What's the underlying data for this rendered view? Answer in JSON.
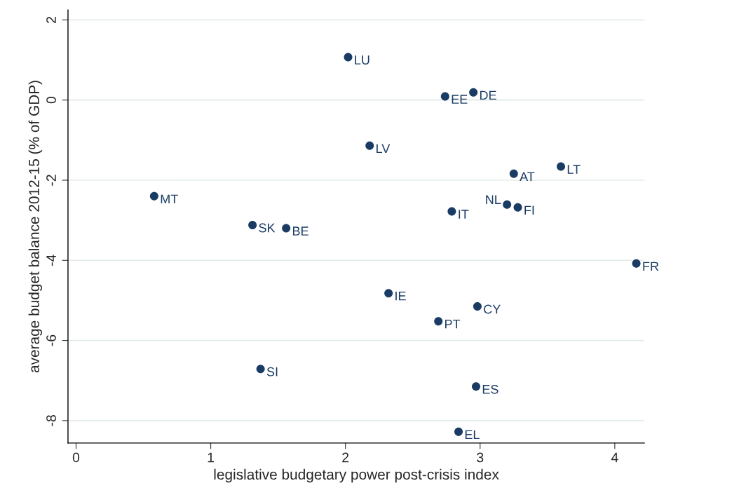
{
  "chart_data": {
    "type": "scatter",
    "xlabel": "legislative budgetary power post-crisis index",
    "ylabel": "average budget balance 2012-15 (% of GDP)",
    "xlim": [
      -0.06,
      4.22
    ],
    "ylim": [
      -8.56,
      2.25
    ],
    "xticks": [
      0,
      1,
      2,
      3,
      4
    ],
    "yticks": [
      -8,
      -6,
      -4,
      -2,
      0,
      2
    ],
    "grid": "y",
    "marker": "circle",
    "legend": false,
    "series": [
      {
        "color": "#1a3c64",
        "x": [
          2.02,
          2.95,
          2.74,
          2.18,
          3.6,
          3.25,
          0.58,
          3.2,
          3.28,
          2.79,
          1.31,
          1.56,
          4.16,
          2.32,
          2.98,
          2.69,
          1.37,
          2.97,
          2.84
        ],
        "values": [
          1.07,
          0.19,
          0.09,
          -1.14,
          -1.66,
          -1.84,
          -2.4,
          -2.61,
          -2.68,
          -2.78,
          -3.12,
          -3.2,
          -4.08,
          -4.82,
          -5.15,
          -5.52,
          -6.71,
          -7.15,
          -8.28
        ]
      }
    ],
    "annotations": [
      {
        "text": "LU",
        "x": 2.02,
        "y": 1.07
      },
      {
        "text": "DE",
        "x": 2.95,
        "y": 0.19
      },
      {
        "text": "EE",
        "x": 2.74,
        "y": 0.09
      },
      {
        "text": "LV",
        "x": 2.18,
        "y": -1.14
      },
      {
        "text": "LT",
        "x": 3.6,
        "y": -1.66
      },
      {
        "text": "AT",
        "x": 3.25,
        "y": -1.84
      },
      {
        "text": "MT",
        "x": 0.58,
        "y": -2.4
      },
      {
        "text": "NL",
        "x": 3.2,
        "y": -2.61
      },
      {
        "text": "FI",
        "x": 3.28,
        "y": -2.68
      },
      {
        "text": "IT",
        "x": 2.79,
        "y": -2.78
      },
      {
        "text": "SK",
        "x": 1.31,
        "y": -3.12
      },
      {
        "text": "BE",
        "x": 1.56,
        "y": -3.2
      },
      {
        "text": "FR",
        "x": 4.16,
        "y": -4.08
      },
      {
        "text": "IE",
        "x": 2.32,
        "y": -4.82
      },
      {
        "text": "CY",
        "x": 2.98,
        "y": -5.15
      },
      {
        "text": "PT",
        "x": 2.69,
        "y": -5.52
      },
      {
        "text": "SI",
        "x": 1.37,
        "y": -6.71
      },
      {
        "text": "ES",
        "x": 2.97,
        "y": -7.15
      },
      {
        "text": "EL",
        "x": 2.84,
        "y": -8.28
      }
    ]
  }
}
